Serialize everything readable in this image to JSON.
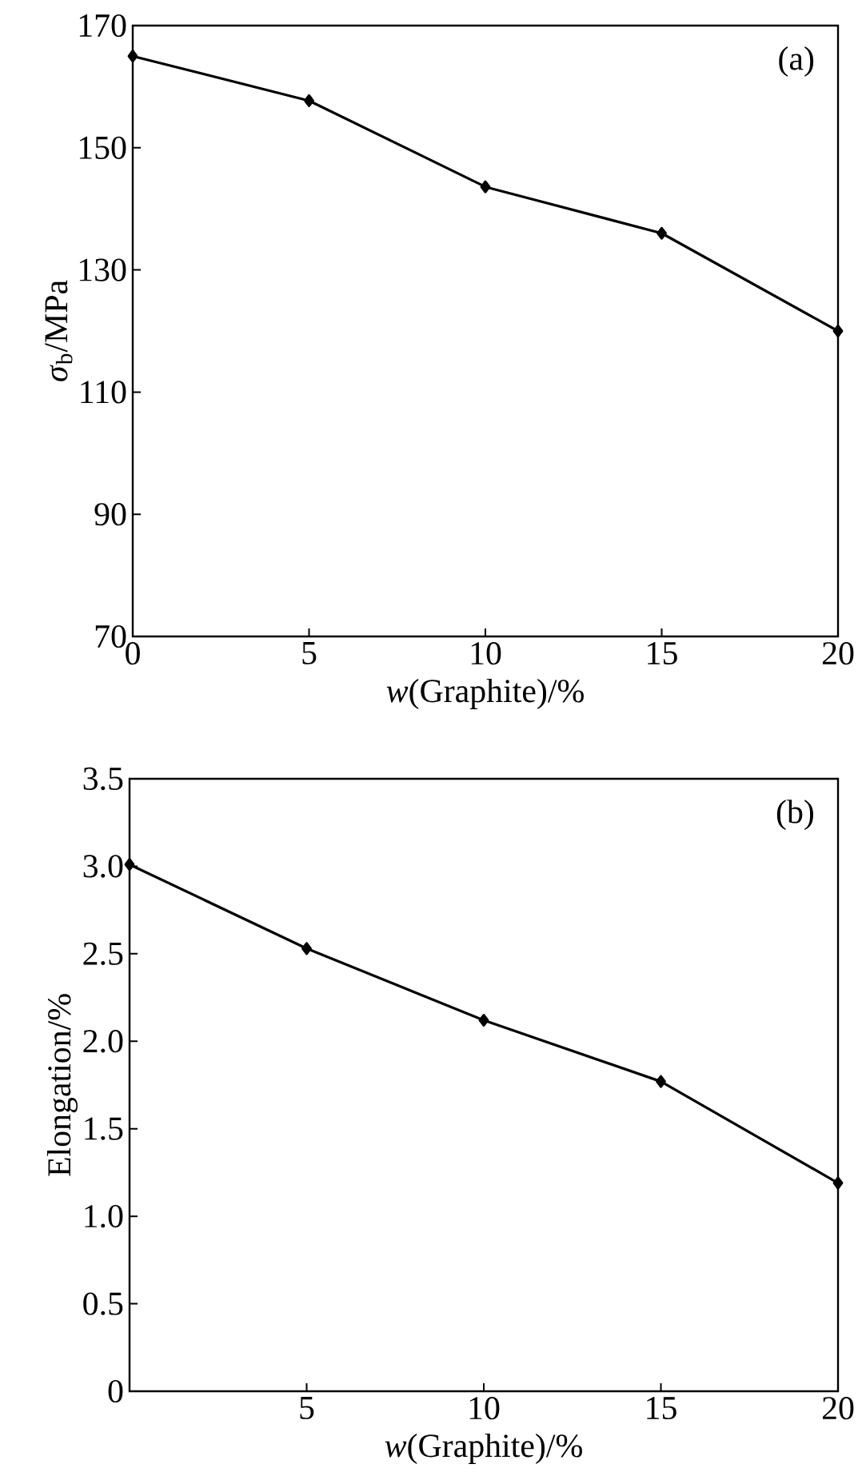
{
  "chart_data": [
    {
      "type": "line",
      "xlabel": "*w*(Graphite)/%",
      "ylabel": "*σ*$_{b}$/MPa",
      "annotations": [
        "(a)"
      ],
      "x": [
        0,
        5,
        10,
        15,
        20
      ],
      "series": [
        {
          "color": "#000000",
          "values": [
            165.0,
            157.7,
            143.6,
            136.0,
            120.0
          ]
        }
      ],
      "xlim": [
        0,
        20
      ],
      "xticks": [
        0,
        5,
        10,
        15,
        20
      ],
      "ylim": [
        70,
        170
      ],
      "yticks": [
        70,
        90,
        110,
        130,
        150,
        170
      ],
      "marker": "diamond",
      "line_style": "solid"
    },
    {
      "type": "line",
      "xlabel": "*w*(Graphite)/%",
      "ylabel": "Elongation/%",
      "annotations": [
        "(b)"
      ],
      "x": [
        0,
        5,
        10,
        15,
        20
      ],
      "series": [
        {
          "color": "#000000",
          "values": [
            3.01,
            2.53,
            2.12,
            1.77,
            1.19
          ]
        }
      ],
      "xlim": [
        0,
        20
      ],
      "xticks": [
        5,
        10,
        15,
        20
      ],
      "ylim": [
        0,
        3.5
      ],
      "yticks": [
        0,
        0.5,
        {
          "value": 1,
          "label": "1.0"
        },
        1.5,
        {
          "value": 2,
          "label": "2.0"
        },
        2.5,
        {
          "value": 3,
          "label": "3.0"
        },
        3.5
      ],
      "marker": "diamond",
      "line_style": "solid"
    }
  ]
}
